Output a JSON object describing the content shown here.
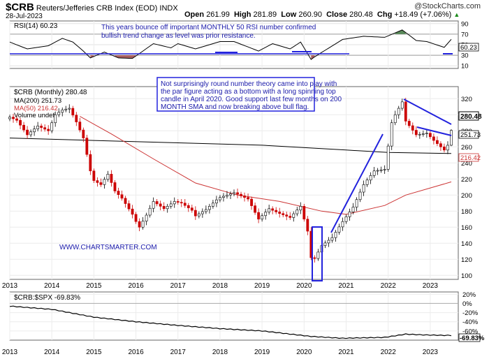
{
  "header": {
    "symbol": "$CRB",
    "name": "Reuters/Jefferies CRB Index (EOD)",
    "exchange": "INDX",
    "date": "28-Jul-2023",
    "open_label": "Open",
    "open": "261.99",
    "high_label": "High",
    "high": "281.89",
    "low_label": "Low",
    "low": "260.90",
    "close_label": "Close",
    "close": "280.48",
    "chg_label": "Chg",
    "chg": "+18.49 (+7.06%)",
    "chg_arrow": "▲",
    "brand": "@StockCharts.com"
  },
  "rsi_panel": {
    "label": "RSI(14) 60.23",
    "current_value": "60.23",
    "annotation": "This years bounce off important MONTHLY 50 RSI number confirmed bullish trend change as level was prior resistance.",
    "ticks": [
      "90",
      "70",
      "50",
      "30",
      "10"
    ]
  },
  "price_panel": {
    "label": "$CRB (Monthly) 280.48",
    "ma200_label": "MA(200) 251.73",
    "ma50_label": "MA(50) 216.42",
    "volume_label": "Volume undef",
    "annotation": "Not surprisingly round number theory came into play with the par figure acting as a bottom with a long spinning top candle in April 2020. Good support last few months on 200 MONTH SMA and now breaking above bull flag.",
    "watermark": "WWW.CHARTSMARTER.COM",
    "last_price_tag": "280.48",
    "ma200_tag": "251.73",
    "ma50_tag": "216.42",
    "ticks": [
      "320",
      "300",
      "280",
      "260",
      "240",
      "220",
      "200",
      "180",
      "160",
      "140",
      "120",
      "100"
    ]
  },
  "ratio_panel": {
    "label": "$CRB:$SPX -69.83%",
    "value_tag": "-69.83%",
    "ticks": [
      "20%",
      "0%",
      "-20%",
      "-40%",
      "-60%"
    ]
  },
  "x_axis": {
    "year_labels": [
      "2013",
      "2014",
      "2015",
      "2016",
      "2017",
      "2018",
      "2019",
      "2020",
      "2021",
      "2022",
      "2023"
    ]
  },
  "colors": {
    "up_candle": "#ffffff",
    "down_candle": "#cc0000",
    "ma50": "#cc3333",
    "ma200": "#000000",
    "trendline": "#2222dd",
    "annotation_text": "#1a1aaa",
    "rsi_overbought_fill": "#5a8a5a",
    "rsi_oversold_fill": "#a86060"
  },
  "chart_data": [
    {
      "type": "candlestick",
      "title": "$CRB (Monthly) 280.48",
      "frequency": "monthly",
      "ylim": [
        95,
        335
      ],
      "x_range": [
        "2013-01",
        "2023-07"
      ],
      "series": [
        {
          "name": "$CRB",
          "close_by_month": [
            {
              "x": "2013-01",
              "y": 297
            },
            {
              "x": "2013-03",
              "y": 293
            },
            {
              "x": "2013-06",
              "y": 275
            },
            {
              "x": "2013-09",
              "y": 286
            },
            {
              "x": "2013-12",
              "y": 280
            },
            {
              "x": "2014-02",
              "y": 300
            },
            {
              "x": "2014-04",
              "y": 306
            },
            {
              "x": "2014-06",
              "y": 308
            },
            {
              "x": "2014-08",
              "y": 291
            },
            {
              "x": "2014-10",
              "y": 271
            },
            {
              "x": "2014-12",
              "y": 230
            },
            {
              "x": "2015-01",
              "y": 218
            },
            {
              "x": "2015-03",
              "y": 213
            },
            {
              "x": "2015-05",
              "y": 226
            },
            {
              "x": "2015-07",
              "y": 205
            },
            {
              "x": "2015-09",
              "y": 196
            },
            {
              "x": "2015-12",
              "y": 176
            },
            {
              "x": "2016-01",
              "y": 167
            },
            {
              "x": "2016-02",
              "y": 160
            },
            {
              "x": "2016-04",
              "y": 175
            },
            {
              "x": "2016-06",
              "y": 192
            },
            {
              "x": "2016-09",
              "y": 183
            },
            {
              "x": "2016-12",
              "y": 192
            },
            {
              "x": "2017-02",
              "y": 190
            },
            {
              "x": "2017-05",
              "y": 181
            },
            {
              "x": "2017-06",
              "y": 174
            },
            {
              "x": "2017-09",
              "y": 182
            },
            {
              "x": "2017-12",
              "y": 194
            },
            {
              "x": "2018-01",
              "y": 197
            },
            {
              "x": "2018-05",
              "y": 203
            },
            {
              "x": "2018-09",
              "y": 195
            },
            {
              "x": "2018-12",
              "y": 170
            },
            {
              "x": "2019-03",
              "y": 183
            },
            {
              "x": "2019-06",
              "y": 177
            },
            {
              "x": "2019-09",
              "y": 172
            },
            {
              "x": "2019-12",
              "y": 186
            },
            {
              "x": "2020-01",
              "y": 170
            },
            {
              "x": "2020-02",
              "y": 155
            },
            {
              "x": "2020-03",
              "y": 122
            },
            {
              "x": "2020-04",
              "y": 121
            },
            {
              "x": "2020-06",
              "y": 137
            },
            {
              "x": "2020-09",
              "y": 147
            },
            {
              "x": "2020-12",
              "y": 167
            },
            {
              "x": "2021-03",
              "y": 185
            },
            {
              "x": "2021-06",
              "y": 213
            },
            {
              "x": "2021-09",
              "y": 230
            },
            {
              "x": "2021-12",
              "y": 232
            },
            {
              "x": "2022-02",
              "y": 290
            },
            {
              "x": "2022-03",
              "y": 300
            },
            {
              "x": "2022-05",
              "y": 316
            },
            {
              "x": "2022-06",
              "y": 292
            },
            {
              "x": "2022-09",
              "y": 275
            },
            {
              "x": "2022-12",
              "y": 277
            },
            {
              "x": "2023-02",
              "y": 268
            },
            {
              "x": "2023-05",
              "y": 256
            },
            {
              "x": "2023-06",
              "y": 262
            },
            {
              "x": "2023-07",
              "y": 280.48
            }
          ]
        },
        {
          "name": "MA(200)",
          "points": [
            {
              "x": "2013-01",
              "y": 271
            },
            {
              "x": "2015-01",
              "y": 268
            },
            {
              "x": "2017-01",
              "y": 265
            },
            {
              "x": "2019-01",
              "y": 262
            },
            {
              "x": "2021-01",
              "y": 256
            },
            {
              "x": "2022-01",
              "y": 253
            },
            {
              "x": "2023-07",
              "y": 251.73
            }
          ]
        },
        {
          "name": "MA(50)",
          "points": [
            {
              "x": "2014-09",
              "y": 298
            },
            {
              "x": "2015-06",
              "y": 276
            },
            {
              "x": "2016-06",
              "y": 245
            },
            {
              "x": "2017-06",
              "y": 215
            },
            {
              "x": "2018-06",
              "y": 200
            },
            {
              "x": "2019-06",
              "y": 192
            },
            {
              "x": "2020-06",
              "y": 180
            },
            {
              "x": "2021-01",
              "y": 176
            },
            {
              "x": "2021-12",
              "y": 187
            },
            {
              "x": "2022-06",
              "y": 200
            },
            {
              "x": "2023-07",
              "y": 216.42
            }
          ]
        }
      ]
    },
    {
      "type": "line",
      "title": "RSI(14) 60.23",
      "ylim": [
        5,
        95
      ],
      "series": [
        {
          "name": "RSI(14)",
          "points": [
            {
              "x": "2013-01",
              "y": 55
            },
            {
              "x": "2013-06",
              "y": 42
            },
            {
              "x": "2013-12",
              "y": 48
            },
            {
              "x": "2014-04",
              "y": 62
            },
            {
              "x": "2014-07",
              "y": 55
            },
            {
              "x": "2014-10",
              "y": 38
            },
            {
              "x": "2014-12",
              "y": 25
            },
            {
              "x": "2015-04",
              "y": 36
            },
            {
              "x": "2015-08",
              "y": 25
            },
            {
              "x": "2015-12",
              "y": 24
            },
            {
              "x": "2016-06",
              "y": 52
            },
            {
              "x": "2016-11",
              "y": 44
            },
            {
              "x": "2017-01",
              "y": 52
            },
            {
              "x": "2017-06",
              "y": 42
            },
            {
              "x": "2018-01",
              "y": 56
            },
            {
              "x": "2018-05",
              "y": 56
            },
            {
              "x": "2018-12",
              "y": 38
            },
            {
              "x": "2019-04",
              "y": 52
            },
            {
              "x": "2019-09",
              "y": 42
            },
            {
              "x": "2019-12",
              "y": 55
            },
            {
              "x": "2020-03",
              "y": 22
            },
            {
              "x": "2020-04",
              "y": 27
            },
            {
              "x": "2020-12",
              "y": 60
            },
            {
              "x": "2021-06",
              "y": 66
            },
            {
              "x": "2021-12",
              "y": 64
            },
            {
              "x": "2022-05",
              "y": 78
            },
            {
              "x": "2022-09",
              "y": 58
            },
            {
              "x": "2022-12",
              "y": 56
            },
            {
              "x": "2023-05",
              "y": 45
            },
            {
              "x": "2023-07",
              "y": 60.23
            }
          ]
        }
      ]
    },
    {
      "type": "area",
      "title": "$CRB:$SPX -69.83%",
      "ylim": [
        -80,
        25
      ],
      "series": [
        {
          "name": "$CRB:$SPX",
          "points": [
            {
              "x": "2013-01",
              "y": -6
            },
            {
              "x": "2014-01",
              "y": -13
            },
            {
              "x": "2015-01",
              "y": -30
            },
            {
              "x": "2016-01",
              "y": -40
            },
            {
              "x": "2017-01",
              "y": -48
            },
            {
              "x": "2018-01",
              "y": -55
            },
            {
              "x": "2019-01",
              "y": -60
            },
            {
              "x": "2020-03",
              "y": -72
            },
            {
              "x": "2020-12",
              "y": -76
            },
            {
              "x": "2021-12",
              "y": -74
            },
            {
              "x": "2022-06",
              "y": -67
            },
            {
              "x": "2022-12",
              "y": -69
            },
            {
              "x": "2023-07",
              "y": -69.83
            }
          ]
        }
      ]
    }
  ]
}
